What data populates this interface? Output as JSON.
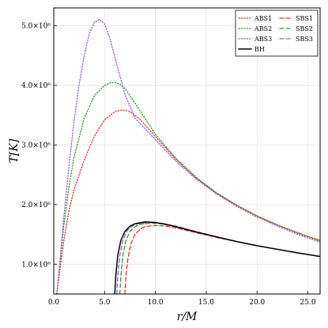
{
  "chart_data": {
    "type": "line",
    "xlabel": "r/M",
    "ylabel": "T[K]",
    "xlim": [
      0,
      26.2
    ],
    "ylim": [
      500000,
      5300000
    ],
    "grid": true,
    "legend_placement": "top-right",
    "x_ticks": [
      0,
      5,
      10,
      15,
      20,
      25
    ],
    "x_tick_labels": [
      "0.0",
      "5.0",
      "10.0",
      "15.0",
      "20.0",
      "25.0"
    ],
    "y_ticks": [
      1000000,
      2000000,
      3000000,
      4000000,
      5000000
    ],
    "y_tick_labels": [
      "1.0×10⁶",
      "2.0×10⁶",
      "3.0×10⁶",
      "4.0×10⁶",
      "5.0×10⁶"
    ],
    "series": [
      {
        "name": "ABS1",
        "color": "#e0322f",
        "dash": "dotted",
        "x": [
          0.3,
          0.6,
          1.0,
          1.5,
          2.0,
          3.0,
          4.0,
          5.0,
          6.0,
          6.8,
          7.5,
          8.5,
          10.0,
          12.0,
          14.0,
          16.0,
          18.0,
          20.0,
          22.0,
          24.0,
          26.2
        ],
        "y": [
          500000,
          900000,
          1400000,
          1900000,
          2250000,
          2750000,
          3150000,
          3420000,
          3560000,
          3590000,
          3560000,
          3430000,
          3140000,
          2760000,
          2450000,
          2190000,
          1990000,
          1810000,
          1660000,
          1530000,
          1400000
        ]
      },
      {
        "name": "ABS2",
        "color": "#2e9a2e",
        "dash": "dotted",
        "x": [
          0.3,
          0.6,
          1.0,
          1.5,
          2.0,
          3.0,
          4.0,
          5.0,
          5.5,
          6.0,
          6.5,
          7.0,
          8.0,
          10.0,
          12.0,
          14.0,
          16.0,
          18.0,
          20.0,
          22.0,
          24.0,
          26.2
        ],
        "y": [
          500000,
          1000000,
          1650000,
          2300000,
          2800000,
          3450000,
          3830000,
          4000000,
          4040000,
          4050000,
          4020000,
          3950000,
          3700000,
          3180000,
          2780000,
          2460000,
          2200000,
          1990000,
          1810000,
          1660000,
          1520000,
          1390000
        ]
      },
      {
        "name": "ABS3",
        "color": "#9955dd",
        "dash": "dotted",
        "x": [
          0.3,
          0.6,
          1.0,
          1.5,
          2.0,
          2.5,
          3.0,
          3.5,
          4.0,
          4.5,
          5.0,
          5.5,
          6.0,
          7.0,
          8.0,
          10.0,
          12.0,
          14.0,
          16.0,
          18.0,
          20.0,
          22.0,
          24.0,
          26.2
        ],
        "y": [
          500000,
          1050000,
          1800000,
          2650000,
          3400000,
          4020000,
          4500000,
          4870000,
          5060000,
          5110000,
          5030000,
          4800000,
          4480000,
          3850000,
          3450000,
          3090000,
          2730000,
          2430000,
          2180000,
          1970000,
          1790000,
          1640000,
          1500000,
          1370000
        ]
      },
      {
        "name": "SBS1",
        "color": "#e0322f",
        "dash": "dashed",
        "x": [
          7.0,
          7.1,
          7.3,
          7.6,
          8.0,
          8.5,
          9.0,
          10.0,
          11.0,
          12.0,
          14.0,
          16.0,
          18.0,
          20.0,
          22.0,
          24.0,
          26.2
        ],
        "y": [
          500000,
          800000,
          1100000,
          1350000,
          1500000,
          1590000,
          1630000,
          1650000,
          1640000,
          1610000,
          1530000,
          1450000,
          1380000,
          1310000,
          1250000,
          1190000,
          1130000
        ]
      },
      {
        "name": "SBS2",
        "color": "#2e9a2e",
        "dash": "dashed",
        "x": [
          6.5,
          6.6,
          6.8,
          7.1,
          7.5,
          8.0,
          8.5,
          9.5,
          10.5,
          12.0,
          14.0,
          16.0,
          18.0,
          20.0,
          22.0,
          24.0,
          26.2
        ],
        "y": [
          500000,
          800000,
          1150000,
          1400000,
          1550000,
          1630000,
          1670000,
          1690000,
          1680000,
          1630000,
          1540000,
          1460000,
          1380000,
          1310000,
          1250000,
          1190000,
          1130000
        ]
      },
      {
        "name": "SBS3",
        "color": "#9955dd",
        "dash": "dashed",
        "x": [
          6.2,
          6.3,
          6.5,
          6.8,
          7.2,
          7.7,
          8.3,
          9.3,
          10.5,
          12.0,
          14.0,
          16.0,
          18.0,
          20.0,
          22.0,
          24.0,
          26.2
        ],
        "y": [
          500000,
          800000,
          1150000,
          1400000,
          1560000,
          1640000,
          1680000,
          1700000,
          1690000,
          1640000,
          1550000,
          1460000,
          1380000,
          1310000,
          1250000,
          1190000,
          1130000
        ]
      },
      {
        "name": "BH",
        "color": "#000000",
        "dash": "solid",
        "x": [
          6.0,
          6.1,
          6.3,
          6.6,
          7.0,
          7.5,
          8.0,
          9.0,
          10.0,
          11.0,
          12.0,
          14.0,
          16.0,
          18.0,
          20.0,
          22.0,
          24.0,
          26.2
        ],
        "y": [
          500000,
          800000,
          1150000,
          1400000,
          1550000,
          1640000,
          1680000,
          1710000,
          1700000,
          1670000,
          1630000,
          1540000,
          1460000,
          1380000,
          1310000,
          1250000,
          1190000,
          1130000
        ]
      }
    ]
  }
}
